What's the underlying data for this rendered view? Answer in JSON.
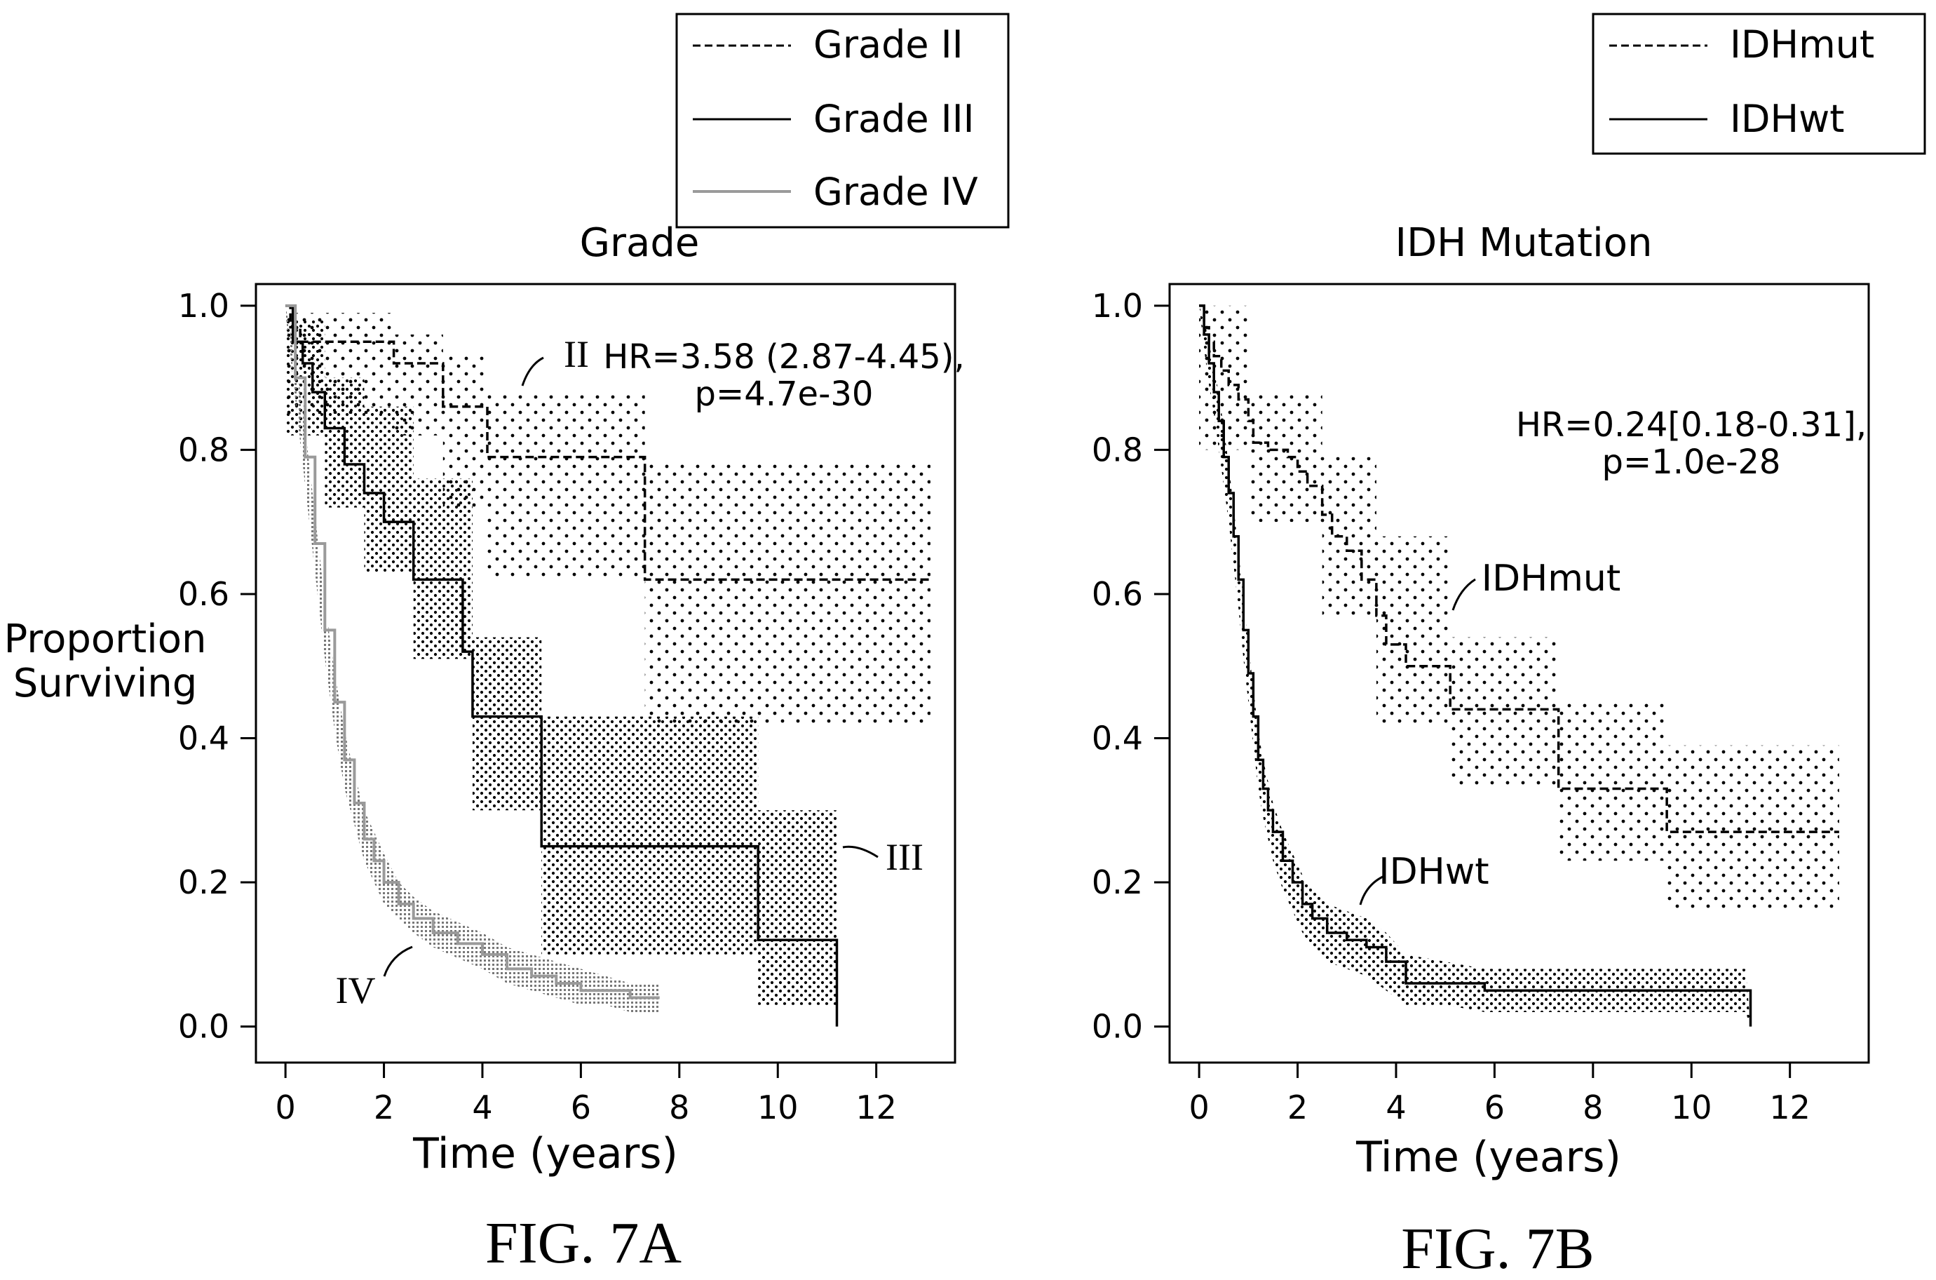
{
  "chart_data": [
    {
      "type": "line",
      "subtype": "kaplan-meier",
      "figure_label": "FIG. 7A",
      "title": "Grade",
      "xlabel": "Time (years)",
      "ylabel_lines": [
        "Proportion",
        "Surviving"
      ],
      "xlim": [
        -0.6,
        13.6
      ],
      "ylim": [
        -0.05,
        1.03
      ],
      "xticks": [
        0,
        2,
        4,
        6,
        8,
        10,
        12
      ],
      "yticks": [
        0.0,
        0.2,
        0.4,
        0.6,
        0.8,
        1.0
      ],
      "ytick_labels": [
        "0.0",
        "0.2",
        "0.4",
        "0.6",
        "0.8",
        "1.0"
      ],
      "annotation": [
        "HR=3.58 (2.87-4.45),",
        "p=4.7e-30"
      ],
      "legend_position": "top-right (above plot)",
      "series": [
        {
          "name": "Grade II",
          "label": "II",
          "style": "dashed",
          "color": "#000000",
          "step_x": [
            0,
            0.1,
            0.3,
            2.2,
            3.2,
            4.1,
            7.3,
            13.1
          ],
          "step_y": [
            1.0,
            0.97,
            0.95,
            0.92,
            0.86,
            0.79,
            0.62,
            0.62
          ],
          "ci": [
            {
              "x0": 0.0,
              "x1": 2.2,
              "lo": 0.85,
              "hi": 0.99
            },
            {
              "x0": 2.2,
              "x1": 3.2,
              "lo": 0.82,
              "hi": 0.96
            },
            {
              "x0": 3.2,
              "x1": 4.1,
              "lo": 0.72,
              "hi": 0.93
            },
            {
              "x0": 4.1,
              "x1": 7.3,
              "lo": 0.62,
              "hi": 0.88
            },
            {
              "x0": 7.3,
              "x1": 13.1,
              "lo": 0.42,
              "hi": 0.78
            }
          ]
        },
        {
          "name": "Grade III",
          "label": "III",
          "style": "solid",
          "color": "#000000",
          "step_x": [
            0,
            0.15,
            0.35,
            0.55,
            0.8,
            1.2,
            1.6,
            2.0,
            2.6,
            3.6,
            3.8,
            5.2,
            9.6,
            11.2
          ],
          "step_y": [
            1.0,
            0.95,
            0.92,
            0.88,
            0.83,
            0.78,
            0.74,
            0.7,
            0.62,
            0.52,
            0.43,
            0.25,
            0.12,
            0.0
          ],
          "ci": [
            {
              "x0": 0.0,
              "x1": 0.8,
              "lo": 0.82,
              "hi": 0.98
            },
            {
              "x0": 0.8,
              "x1": 1.6,
              "lo": 0.72,
              "hi": 0.9
            },
            {
              "x0": 1.6,
              "x1": 2.6,
              "lo": 0.63,
              "hi": 0.86
            },
            {
              "x0": 2.6,
              "x1": 3.8,
              "lo": 0.51,
              "hi": 0.76
            },
            {
              "x0": 3.8,
              "x1": 5.2,
              "lo": 0.3,
              "hi": 0.54
            },
            {
              "x0": 5.2,
              "x1": 9.6,
              "lo": 0.1,
              "hi": 0.43
            },
            {
              "x0": 9.6,
              "x1": 11.2,
              "lo": 0.03,
              "hi": 0.3
            }
          ]
        },
        {
          "name": "Grade IV",
          "label": "IV",
          "style": "solid-light",
          "color": "#9a9a9a",
          "x": [
            0,
            0.2,
            0.4,
            0.6,
            0.8,
            1.0,
            1.2,
            1.4,
            1.6,
            1.8,
            2.0,
            2.3,
            2.6,
            3.0,
            3.5,
            4.0,
            4.5,
            5.0,
            5.5,
            6.0,
            6.5,
            7.0,
            7.6
          ],
          "y": [
            1.0,
            0.9,
            0.79,
            0.67,
            0.55,
            0.45,
            0.37,
            0.31,
            0.26,
            0.23,
            0.2,
            0.17,
            0.15,
            0.13,
            0.115,
            0.1,
            0.08,
            0.07,
            0.06,
            0.05,
            0.05,
            0.04,
            0.04
          ],
          "ci_lo": [
            0.99,
            0.87,
            0.75,
            0.63,
            0.51,
            0.41,
            0.33,
            0.28,
            0.23,
            0.2,
            0.17,
            0.15,
            0.13,
            0.11,
            0.095,
            0.08,
            0.06,
            0.05,
            0.04,
            0.03,
            0.03,
            0.02,
            0.02
          ],
          "ci_hi": [
            1.0,
            0.93,
            0.83,
            0.71,
            0.59,
            0.49,
            0.41,
            0.35,
            0.3,
            0.27,
            0.24,
            0.2,
            0.18,
            0.16,
            0.145,
            0.13,
            0.11,
            0.1,
            0.09,
            0.08,
            0.07,
            0.06,
            0.06
          ]
        }
      ]
    },
    {
      "type": "line",
      "subtype": "kaplan-meier",
      "figure_label": "FIG. 7B",
      "title": "IDH Mutation",
      "xlabel": "Time (years)",
      "xlim": [
        -0.6,
        13.6
      ],
      "ylim": [
        -0.05,
        1.03
      ],
      "xticks": [
        0,
        2,
        4,
        6,
        8,
        10,
        12
      ],
      "yticks": [
        0.0,
        0.2,
        0.4,
        0.6,
        0.8,
        1.0
      ],
      "ytick_labels": [
        "0.0",
        "0.2",
        "0.4",
        "0.6",
        "0.8",
        "1.0"
      ],
      "annotation": [
        "HR=0.24[0.18-0.31],",
        "p=1.0e-28"
      ],
      "legend_position": "top-right (above plot)",
      "series": [
        {
          "name": "IDHmut",
          "label": "IDHmut",
          "style": "dashed",
          "color": "#000000",
          "step_x": [
            0,
            0.1,
            0.2,
            0.3,
            0.45,
            0.6,
            0.8,
            1.0,
            1.1,
            1.4,
            1.8,
            2.0,
            2.2,
            2.5,
            2.7,
            3.0,
            3.3,
            3.6,
            3.8,
            4.2,
            5.1,
            7.3,
            9.5,
            13.0
          ],
          "step_y": [
            1.0,
            0.97,
            0.95,
            0.93,
            0.91,
            0.89,
            0.87,
            0.84,
            0.81,
            0.8,
            0.79,
            0.77,
            0.75,
            0.71,
            0.68,
            0.66,
            0.62,
            0.57,
            0.53,
            0.5,
            0.44,
            0.33,
            0.27,
            0.27
          ],
          "ci": [
            {
              "x0": 0.0,
              "x1": 1.0,
              "lo": 0.8,
              "hi": 1.0
            },
            {
              "x0": 1.0,
              "x1": 2.5,
              "lo": 0.7,
              "hi": 0.88
            },
            {
              "x0": 2.5,
              "x1": 3.6,
              "lo": 0.57,
              "hi": 0.79
            },
            {
              "x0": 3.6,
              "x1": 5.1,
              "lo": 0.42,
              "hi": 0.68
            },
            {
              "x0": 5.1,
              "x1": 7.3,
              "lo": 0.33,
              "hi": 0.54
            },
            {
              "x0": 7.3,
              "x1": 9.5,
              "lo": 0.23,
              "hi": 0.45
            },
            {
              "x0": 9.5,
              "x1": 13.0,
              "lo": 0.16,
              "hi": 0.39
            }
          ]
        },
        {
          "name": "IDHwt",
          "label": "IDHwt",
          "style": "solid",
          "color": "#000000",
          "x": [
            0,
            0.1,
            0.2,
            0.3,
            0.4,
            0.5,
            0.6,
            0.7,
            0.8,
            0.9,
            1.0,
            1.1,
            1.2,
            1.3,
            1.4,
            1.5,
            1.7,
            1.9,
            2.1,
            2.3,
            2.6,
            3.0,
            3.4,
            3.8,
            4.2,
            5.0,
            5.8,
            7.0,
            9.0,
            11.1,
            11.2
          ],
          "y": [
            1.0,
            0.96,
            0.92,
            0.88,
            0.84,
            0.79,
            0.74,
            0.68,
            0.62,
            0.55,
            0.49,
            0.43,
            0.37,
            0.33,
            0.3,
            0.27,
            0.23,
            0.2,
            0.17,
            0.15,
            0.13,
            0.12,
            0.11,
            0.09,
            0.06,
            0.06,
            0.05,
            0.05,
            0.05,
            0.05,
            0.0
          ],
          "ci_lo": [
            1.0,
            0.94,
            0.89,
            0.85,
            0.8,
            0.75,
            0.7,
            0.64,
            0.58,
            0.51,
            0.45,
            0.39,
            0.33,
            0.29,
            0.26,
            0.23,
            0.19,
            0.16,
            0.13,
            0.11,
            0.09,
            0.08,
            0.07,
            0.05,
            0.03,
            0.03,
            0.02,
            0.02,
            0.02,
            0.02,
            0.0
          ],
          "ci_hi": [
            1.0,
            0.98,
            0.95,
            0.91,
            0.88,
            0.83,
            0.78,
            0.72,
            0.66,
            0.59,
            0.53,
            0.47,
            0.41,
            0.37,
            0.34,
            0.31,
            0.27,
            0.24,
            0.21,
            0.19,
            0.17,
            0.16,
            0.15,
            0.13,
            0.1,
            0.09,
            0.08,
            0.08,
            0.08,
            0.08,
            0.0
          ]
        }
      ]
    }
  ]
}
